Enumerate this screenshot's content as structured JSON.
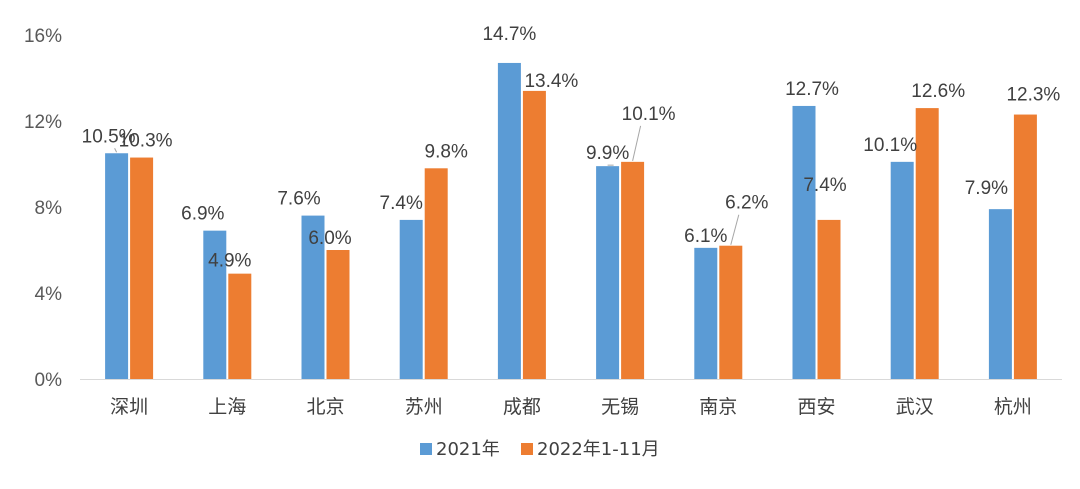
{
  "chart_data": {
    "type": "bar",
    "categories": [
      "深圳",
      "上海",
      "北京",
      "苏州",
      "成都",
      "无锡",
      "南京",
      "西安",
      "武汉",
      "杭州"
    ],
    "series": [
      {
        "name": "2021年",
        "values": [
          10.5,
          6.9,
          7.6,
          7.4,
          14.7,
          9.9,
          6.1,
          12.7,
          10.1,
          7.9
        ],
        "labels": [
          "10.5%",
          "6.9%",
          "7.6%",
          "7.4%",
          "14.7%",
          "9.9%",
          "6.1%",
          "12.7%",
          "10.1%",
          "7.9%"
        ],
        "color": "#5B9BD5"
      },
      {
        "name": "2022年1-11月",
        "values": [
          10.3,
          4.9,
          6.0,
          9.8,
          13.4,
          10.1,
          6.2,
          7.4,
          12.6,
          12.3
        ],
        "labels": [
          "10.3%",
          "4.9%",
          "6.0%",
          "9.8%",
          "13.4%",
          "10.1%",
          "6.2%",
          "7.4%",
          "12.6%",
          "12.3%"
        ],
        "color": "#ED7D31"
      }
    ],
    "yticks": [
      "0%",
      "4%",
      "8%",
      "12%",
      "16%"
    ],
    "ytick_values": [
      0,
      4,
      8,
      12,
      16
    ],
    "ylim": [
      0,
      16
    ],
    "grid": false,
    "legend": "bottom"
  }
}
